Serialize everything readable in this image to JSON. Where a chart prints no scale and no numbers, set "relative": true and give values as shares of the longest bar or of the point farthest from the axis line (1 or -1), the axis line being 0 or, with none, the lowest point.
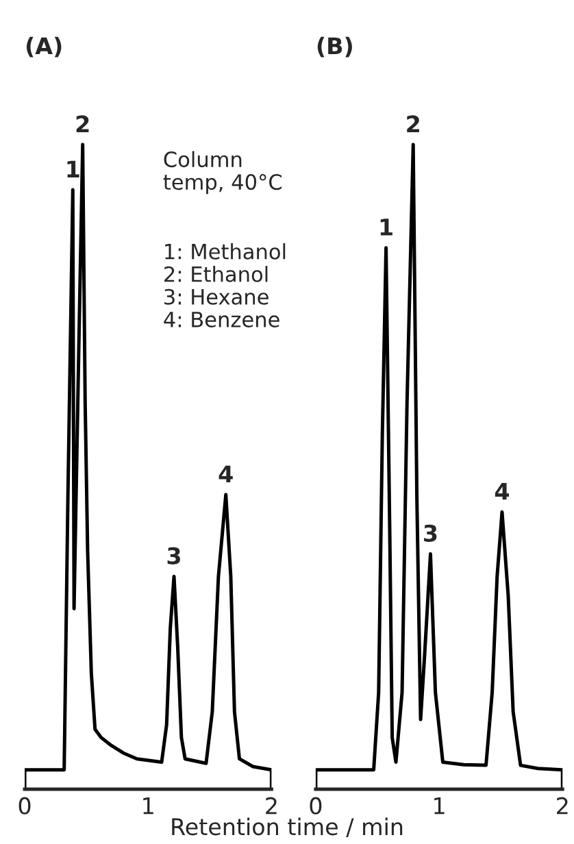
{
  "chart_data": [
    {
      "type": "line",
      "title": "(A)",
      "xlabel": "Retention time / min",
      "relative": true,
      "xlim": [
        0,
        2
      ],
      "xticks": [
        0,
        1,
        2
      ],
      "grid": false,
      "legend": false,
      "marker": "none",
      "line_style": "solid",
      "series": [
        {
          "color": "#000000",
          "x": [
            0,
            0,
            0.32,
            0.35,
            0.39,
            0.4,
            0.44,
            0.47,
            0.49,
            0.51,
            0.54,
            0.57,
            0.62,
            0.7,
            0.8,
            0.91,
            1.11,
            1.15,
            1.18,
            1.21,
            1.24,
            1.27,
            1.3,
            1.47,
            1.52,
            1.57,
            1.63,
            1.67,
            1.7,
            1.74,
            1.85,
            2.0,
            2.0
          ],
          "values": [
            0,
            0.03,
            0.03,
            0.45,
            0.93,
            0.28,
            0.7,
            1.0,
            0.6,
            0.37,
            0.18,
            0.093,
            0.08,
            0.068,
            0.056,
            0.047,
            0.042,
            0.1,
            0.25,
            0.33,
            0.22,
            0.08,
            0.047,
            0.04,
            0.12,
            0.33,
            0.457,
            0.33,
            0.12,
            0.047,
            0.035,
            0.03,
            0
          ]
        }
      ],
      "annotations": [
        {
          "text": "1",
          "x": 0.39,
          "y": 0.93
        },
        {
          "text": "2",
          "x": 0.47,
          "y": 1.0
        },
        {
          "text": "3",
          "x": 1.21,
          "y": 0.33
        },
        {
          "text": "4",
          "x": 1.63,
          "y": 0.457
        },
        "Column\ntemp, 40°C",
        "1: Methanol\n2: Ethanol\n3: Hexane\n4: Benzene"
      ]
    },
    {
      "type": "line",
      "title": "(B)",
      "relative": true,
      "xlim": [
        0,
        2
      ],
      "xticks": [
        0,
        1,
        2
      ],
      "grid": false,
      "legend": false,
      "marker": "none",
      "line_style": "solid",
      "series": [
        {
          "color": "#000000",
          "x": [
            0,
            0,
            0.47,
            0.51,
            0.54,
            0.57,
            0.6,
            0.62,
            0.65,
            0.7,
            0.74,
            0.79,
            0.82,
            0.85,
            0.88,
            0.93,
            0.97,
            1.03,
            1.2,
            1.38,
            1.43,
            1.47,
            1.51,
            1.56,
            1.6,
            1.66,
            1.8,
            2.0,
            2.0
          ],
          "values": [
            0,
            0.03,
            0.03,
            0.15,
            0.55,
            0.84,
            0.4,
            0.08,
            0.042,
            0.15,
            0.6,
            1.0,
            0.45,
            0.108,
            0.2,
            0.365,
            0.15,
            0.042,
            0.038,
            0.037,
            0.15,
            0.33,
            0.43,
            0.3,
            0.12,
            0.037,
            0.032,
            0.03,
            0
          ]
        }
      ],
      "annotations": [
        {
          "text": "1",
          "x": 0.57,
          "y": 0.84
        },
        {
          "text": "2",
          "x": 0.79,
          "y": 1.0
        },
        {
          "text": "3",
          "x": 0.93,
          "y": 0.365
        },
        {
          "text": "4",
          "x": 1.51,
          "y": 0.43
        }
      ]
    }
  ]
}
